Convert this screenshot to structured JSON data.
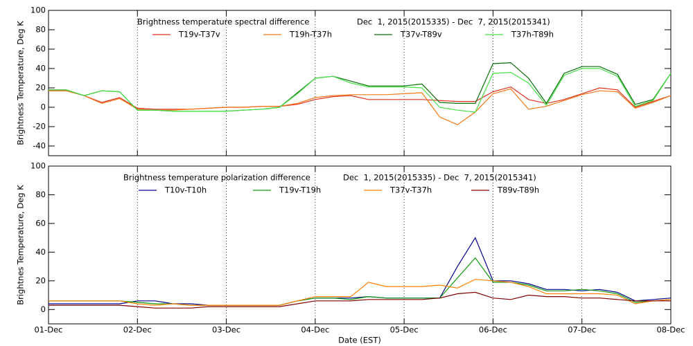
{
  "chart_data": [
    {
      "type": "line",
      "title": "Brightness temperature spectral difference",
      "subtitle": "Dec  1, 2015(2015335) - Dec  7, 2015(2015341)",
      "y_label": "Brightness Temperature, Deg K",
      "x": [
        0,
        0.2,
        0.4,
        0.6,
        0.8,
        1,
        1.2,
        1.4,
        1.6,
        1.8,
        2,
        2.2,
        2.4,
        2.6,
        2.8,
        3,
        3.2,
        3.4,
        3.6,
        3.8,
        4,
        4.2,
        4.4,
        4.6,
        4.8,
        5,
        5.2,
        5.4,
        5.6,
        5.8,
        6,
        6.2,
        6.4,
        6.6,
        6.8,
        7
      ],
      "xlim": [
        0,
        7
      ],
      "xticks": [
        0,
        1,
        2,
        3,
        4,
        5,
        6,
        7
      ],
      "ylim": [
        -50,
        100
      ],
      "yticks": [
        -40,
        -20,
        0,
        20,
        40,
        60,
        80,
        100
      ],
      "grid": true,
      "series": [
        {
          "name": "T19v-T37v",
          "color": "#e0301e",
          "values": [
            17,
            17,
            12,
            5,
            10,
            -1,
            -2,
            -2,
            -2,
            -1,
            0,
            0,
            1,
            1,
            3,
            8,
            11,
            12,
            8,
            8,
            8,
            8,
            7,
            6,
            6,
            16,
            21,
            8,
            4,
            8,
            14,
            20,
            18,
            0,
            6,
            12
          ]
        },
        {
          "name": "T19h-T37h",
          "color": "#f07814",
          "values": [
            17,
            17,
            12,
            4,
            9,
            -2,
            -3,
            -3,
            -2,
            -1,
            0,
            0,
            1,
            1,
            4,
            10,
            12,
            13,
            13,
            13,
            14,
            15,
            -10,
            -18,
            -5,
            14,
            19,
            -2,
            1,
            7,
            13,
            17,
            16,
            -1,
            5,
            12
          ]
        },
        {
          "name": "T37v-T89v",
          "color": "#0a6e0a",
          "values": [
            18,
            18,
            12,
            17,
            16,
            -3,
            -3,
            -4,
            -4,
            -4,
            -4,
            -3,
            -2,
            0,
            15,
            30,
            32,
            27,
            22,
            22,
            22,
            24,
            5,
            4,
            4,
            45,
            46,
            30,
            4,
            35,
            42,
            42,
            34,
            3,
            8,
            35
          ]
        },
        {
          "name": "T37h-T89h",
          "color": "#44e044",
          "values": [
            18,
            18,
            12,
            17,
            16,
            -3,
            -3,
            -4,
            -4,
            -4,
            -4,
            -3,
            -2,
            0,
            14,
            30,
            32,
            25,
            21,
            21,
            21,
            20,
            0,
            -3,
            -5,
            35,
            36,
            25,
            2,
            33,
            40,
            40,
            32,
            1,
            7,
            35
          ]
        }
      ]
    },
    {
      "type": "line",
      "title": "Brightness temperature polarization difference",
      "subtitle": "Dec  1, 2015(2015335) - Dec  7, 2015(2015341)",
      "y_label": "Brightnes Temperature, Deg K",
      "x_label": "Date (EST)",
      "x": [
        0,
        0.2,
        0.4,
        0.6,
        0.8,
        1,
        1.2,
        1.4,
        1.6,
        1.8,
        2,
        2.2,
        2.4,
        2.6,
        2.8,
        3,
        3.2,
        3.4,
        3.6,
        3.8,
        4,
        4.2,
        4.4,
        4.6,
        4.8,
        5,
        5.2,
        5.4,
        5.6,
        5.8,
        6,
        6.2,
        6.4,
        6.6,
        6.8,
        7
      ],
      "xlim": [
        0,
        7
      ],
      "xticks": [
        {
          "value": 0,
          "label": "01-Dec"
        },
        {
          "value": 1,
          "label": "02-Dec"
        },
        {
          "value": 2,
          "label": "03-Dec"
        },
        {
          "value": 3,
          "label": "04-Dec"
        },
        {
          "value": 4,
          "label": "05-Dec"
        },
        {
          "value": 5,
          "label": "06-Dec"
        },
        {
          "value": 6,
          "label": "07-Dec"
        },
        {
          "value": 7,
          "label": "08-Dec"
        }
      ],
      "ylim": [
        -10,
        100
      ],
      "yticks": [
        0,
        20,
        40,
        60,
        80,
        100
      ],
      "grid": true,
      "series": [
        {
          "name": "T10v-T10h",
          "color": "#00008b",
          "values": [
            4,
            4,
            4,
            4,
            4,
            6,
            6,
            4,
            4,
            3,
            3,
            3,
            3,
            3,
            6,
            8,
            8,
            8,
            9,
            8,
            8,
            8,
            8,
            30,
            50,
            20,
            20,
            18,
            14,
            14,
            13,
            14,
            12,
            6,
            7,
            8
          ]
        },
        {
          "name": "T19v-T19h",
          "color": "#109a10",
          "values": [
            6,
            6,
            6,
            6,
            6,
            5,
            4,
            4,
            3,
            3,
            3,
            3,
            3,
            3,
            6,
            8,
            8,
            7,
            9,
            8,
            8,
            8,
            8,
            22,
            36,
            19,
            19,
            17,
            13,
            13,
            14,
            13,
            11,
            5,
            6,
            7
          ]
        },
        {
          "name": "T37v-T37h",
          "color": "#ff8000",
          "values": [
            6,
            6,
            6,
            6,
            6,
            4,
            3,
            4,
            3,
            3,
            3,
            3,
            3,
            3,
            6,
            9,
            9,
            9,
            19,
            16,
            16,
            16,
            17,
            15,
            21,
            20,
            19,
            16,
            11,
            11,
            11,
            11,
            10,
            4,
            6,
            7
          ]
        },
        {
          "name": "T89v-T89h",
          "color": "#800000",
          "values": [
            3,
            3,
            3,
            3,
            3,
            2,
            1,
            1,
            1,
            2,
            2,
            2,
            2,
            2,
            4,
            6,
            6,
            6,
            7,
            7,
            7,
            7,
            8,
            11,
            12,
            8,
            7,
            10,
            9,
            9,
            8,
            8,
            7,
            6,
            6,
            6
          ]
        }
      ]
    }
  ]
}
